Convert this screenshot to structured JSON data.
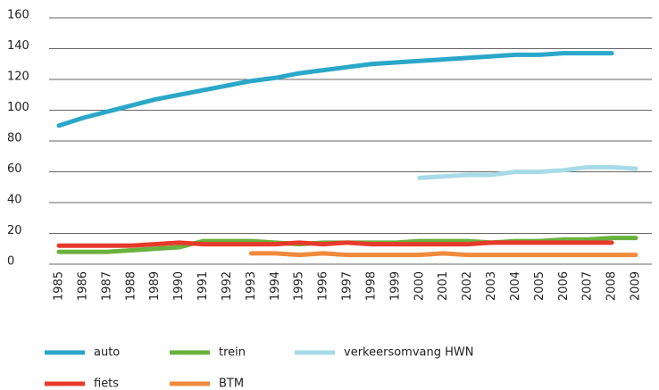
{
  "chart_data": {
    "type": "line",
    "categories": [
      "1985",
      "1986",
      "1987",
      "1988",
      "1989",
      "1990",
      "1991",
      "1992",
      "1993",
      "1994",
      "1995",
      "1996",
      "1997",
      "1998",
      "1999",
      "2000",
      "2001",
      "2002",
      "2003",
      "2004",
      "2005",
      "2006",
      "2007",
      "2008",
      "2009"
    ],
    "series": [
      {
        "name": "auto",
        "color": "#2aa7c9",
        "values": [
          90,
          95,
          99,
          103,
          107,
          110,
          113,
          116,
          119,
          121,
          124,
          126,
          128,
          130,
          131,
          132,
          133,
          134,
          135,
          136,
          136,
          137,
          137,
          137,
          null
        ]
      },
      {
        "name": "trein",
        "color": "#6ab23e",
        "values": [
          8,
          8,
          8,
          9,
          10,
          11,
          15,
          15,
          15,
          14,
          13,
          14,
          14,
          14,
          14,
          15,
          15,
          15,
          14,
          15,
          15,
          16,
          16,
          17,
          17
        ]
      },
      {
        "name": "verkeersomvang HWN",
        "color": "#a7dbe8",
        "values": [
          null,
          null,
          null,
          null,
          null,
          null,
          null,
          null,
          null,
          null,
          null,
          null,
          null,
          null,
          null,
          56,
          57,
          58,
          58,
          60,
          60,
          61,
          63,
          63,
          62
        ]
      },
      {
        "name": "fiets",
        "color": "#e8392b",
        "values": [
          12,
          12,
          12,
          12,
          13,
          14,
          13,
          13,
          13,
          13,
          14,
          13,
          14,
          13,
          13,
          13,
          13,
          13,
          14,
          14,
          14,
          14,
          14,
          14,
          null
        ]
      },
      {
        "name": "BTM",
        "color": "#f08a3c",
        "values": [
          null,
          null,
          null,
          null,
          null,
          null,
          null,
          null,
          7,
          7,
          6,
          7,
          6,
          6,
          6,
          6,
          7,
          6,
          6,
          6,
          6,
          6,
          6,
          6,
          6
        ]
      }
    ],
    "ylim": [
      0,
      160
    ],
    "yticks": [
      0,
      20,
      40,
      60,
      80,
      100,
      120,
      140,
      160
    ],
    "grid": true
  }
}
